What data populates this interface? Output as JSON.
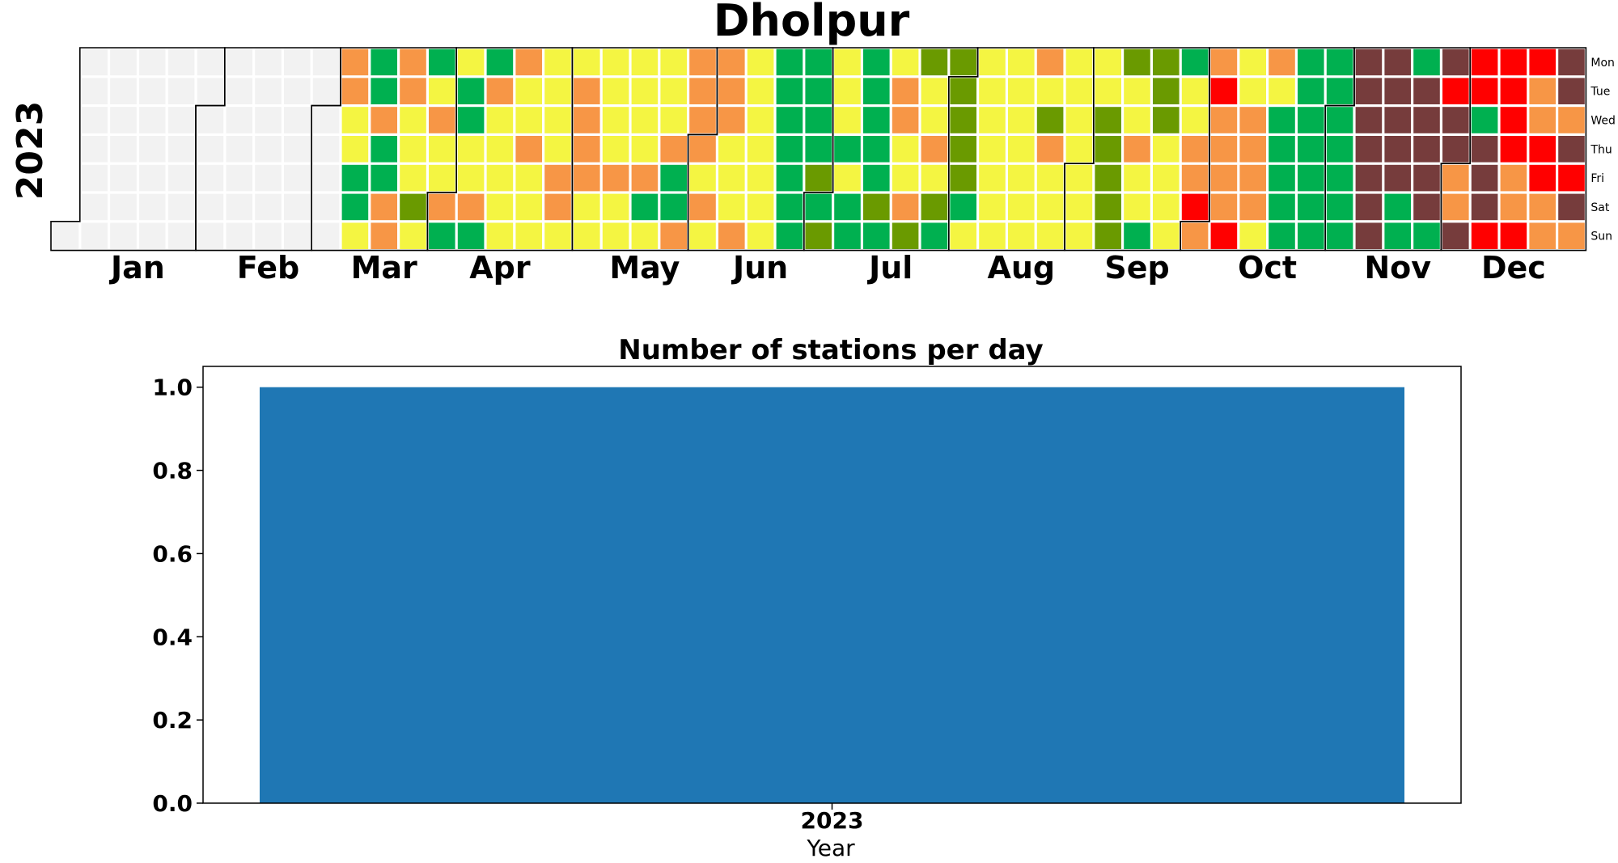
{
  "chart_data": [
    {
      "type": "heatmap",
      "title": "Dholpur",
      "year_label": "2023",
      "weekday_labels": [
        "Mon",
        "Tue",
        "Wed",
        "Thu",
        "Fri",
        "Sat",
        "Sun"
      ],
      "month_labels": [
        "Jan",
        "Feb",
        "Mar",
        "Apr",
        "May",
        "Jun",
        "Jul",
        "Aug",
        "Sep",
        "Oct",
        "Nov",
        "Dec"
      ],
      "year": 2023,
      "no_data_color": "#f2f2f2",
      "category_colors": {
        "g": "#00b050",
        "l": "#6a9a00",
        "y": "#f4f542",
        "o": "#f79646",
        "r": "#ff0000",
        "m": "#763c3c"
      },
      "weeks_from_2023_03_06": [
        "ooyyggy",
        "ggoggoo",
        "ooyyyly",
        "gyoyyog",
        "yggyyog",
        "goyyyyy",
        "oyyoyyy",
        "yyyyooy",
        "yooooyy",
        "yyyyoyy",
        "yyyyogy",
        "yyyoggo",
        "ooooyoy",
        "oooyyyo",
        "yyyyyyy",
        "ggggggg",
        "gggglgl",
        "yyygygg",
        "ggggglg",
        "yooyyol",
        "lyyoylg",
        "lllllgy",
        "yyyyyyy",
        "yyyyyyy",
        "oyloyyy",
        "yyyyyyy",
        "yylllll",
        "lyyoyyg",
        "lllyyyy",
        "gyyooro",
        "oroooor",
        "yyooooy",
        "oyggggg",
        "gggggg g",
        "ggggggg",
        "mmmmmmm",
        "mmmmmgg",
        "gmmmmmg",
        "mrmmoom",
        "rrgmmmr",
        "rrrroor",
        "roorroom",
        "mmomrmo"
      ]
    },
    {
      "type": "bar",
      "title": "Number of stations per day",
      "categories": [
        "2023"
      ],
      "values": [
        1.0
      ],
      "xlabel": "Year",
      "ylabel": "",
      "ylim": [
        0,
        1.05
      ],
      "yticks": [
        "0.0",
        "0.2",
        "0.4",
        "0.6",
        "0.8",
        "1.0"
      ],
      "bar_color": "#1f77b4"
    }
  ]
}
